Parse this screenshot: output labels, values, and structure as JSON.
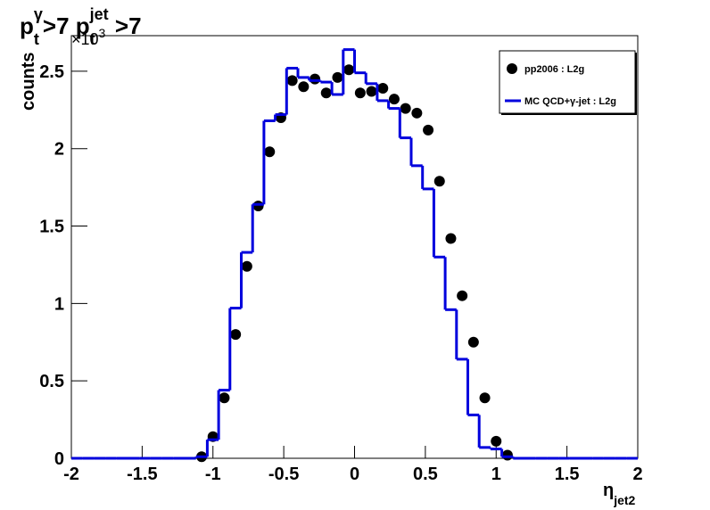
{
  "chart_data": {
    "type": "scatter_hist",
    "title_parts": [
      {
        "text": "p",
        "role": "base"
      },
      {
        "text": "t",
        "role": "sub"
      },
      {
        "text": "γ",
        "role": "sup"
      },
      {
        "text": ">7 p",
        "role": "base"
      },
      {
        "text": "t",
        "role": "sub"
      },
      {
        "text": "jet",
        "role": "sup"
      },
      {
        "text": " >7",
        "role": "base"
      }
    ],
    "y_multiplier": {
      "base": "×10",
      "exp": "3"
    },
    "x_label": {
      "base": "η",
      "sub": "jet2"
    },
    "y_label": "counts",
    "xlim": [
      -2,
      2
    ],
    "ylim": [
      0,
      2.73
    ],
    "xticks": [
      -2,
      -1.5,
      -1,
      -0.5,
      0,
      0.5,
      1,
      1.5,
      2
    ],
    "yticks": [
      0,
      0.5,
      1,
      1.5,
      2,
      2.5
    ],
    "legend": "top-right",
    "series": [
      {
        "name": "pp2006 : L2g",
        "kind": "points",
        "color": "#000000",
        "x": [
          -1.08,
          -1.0,
          -0.92,
          -0.84,
          -0.76,
          -0.68,
          -0.6,
          -0.52,
          -0.44,
          -0.36,
          -0.28,
          -0.2,
          -0.12,
          -0.04,
          0.04,
          0.12,
          0.2,
          0.28,
          0.36,
          0.44,
          0.52,
          0.6,
          0.68,
          0.76,
          0.84,
          0.92,
          1.0,
          1.08
        ],
        "values": [
          0.01,
          0.14,
          0.39,
          0.8,
          1.24,
          1.63,
          1.98,
          2.2,
          2.44,
          2.4,
          2.45,
          2.36,
          2.46,
          2.51,
          2.36,
          2.37,
          2.39,
          2.32,
          2.26,
          2.23,
          2.12,
          1.79,
          1.42,
          1.05,
          0.75,
          0.39,
          0.11,
          0.02
        ]
      },
      {
        "name": "MC QCD+γ-jet : L2g",
        "kind": "step",
        "color": "#0000dd",
        "bins": [
          -2,
          -1.92,
          -1.84,
          -1.76,
          -1.68,
          -1.6,
          -1.52,
          -1.44,
          -1.36,
          -1.28,
          -1.2,
          -1.12,
          -1.04,
          -0.96,
          -0.88,
          -0.8,
          -0.72,
          -0.64,
          -0.56,
          -0.48,
          -0.4,
          -0.32,
          -0.24,
          -0.16,
          -0.08,
          0,
          0.08,
          0.16,
          0.24,
          0.32,
          0.4,
          0.48,
          0.56,
          0.64,
          0.72,
          0.8,
          0.88,
          0.96,
          1.04,
          1.12,
          1.2,
          1.28,
          1.36,
          1.44,
          1.52,
          1.6,
          1.68,
          1.76,
          1.84,
          1.92,
          2
        ],
        "values": [
          0,
          0,
          0,
          0,
          0,
          0,
          0,
          0,
          0,
          0,
          0,
          0.01,
          0.12,
          0.44,
          0.97,
          1.33,
          1.64,
          2.18,
          2.22,
          2.52,
          2.46,
          2.44,
          2.43,
          2.35,
          2.64,
          2.49,
          2.42,
          2.31,
          2.26,
          2.07,
          1.89,
          1.74,
          1.3,
          0.96,
          0.64,
          0.28,
          0.07,
          0.06,
          0.01,
          0,
          0,
          0,
          0,
          0,
          0,
          0,
          0,
          0,
          0,
          0
        ]
      }
    ]
  }
}
